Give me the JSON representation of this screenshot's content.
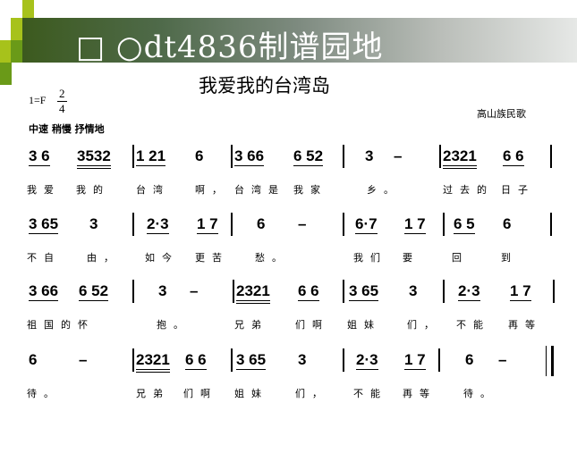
{
  "header": {
    "site_title": "□ ○dt4836制谱园地",
    "accent_colors": [
      "#a7c21b",
      "#6a9a18",
      "#3c5a1e"
    ]
  },
  "song": {
    "title": "我爱我的台湾岛",
    "key": "1=F",
    "time_top": "2",
    "time_bottom": "4",
    "origin": "高山族民歌",
    "tempo": "中速 稍慢 抒情地"
  },
  "rows": [
    {
      "notes": [
        "3 6",
        "3532",
        "1 21",
        "6",
        "3 66",
        "6 52",
        "3",
        "–",
        "2321",
        "6 6"
      ],
      "lyrics": [
        "我爱",
        "我的",
        "台湾",
        "啊，",
        "台湾是",
        "我家",
        "乡。",
        "过去的",
        "日子"
      ]
    },
    {
      "notes": [
        "3 65",
        "3",
        "2·3",
        "1 7",
        "6",
        "–",
        "6·7",
        "1 7",
        "6 5",
        "6"
      ],
      "lyrics": [
        "不自",
        "由，",
        "如今",
        "更苦",
        "愁。",
        "我们",
        "要",
        "回",
        "到"
      ]
    },
    {
      "notes": [
        "3 66",
        "6 52",
        "3",
        "–",
        "2321",
        "6 6",
        "3 65",
        "3",
        "2·3",
        "1 7"
      ],
      "lyrics": [
        "祖国的",
        "怀",
        "抱。",
        "兄弟",
        "们啊",
        "姐妹",
        "们，",
        "不能",
        "再等"
      ]
    },
    {
      "notes": [
        "6",
        "–",
        "2321",
        "6 6",
        "3 65",
        "3",
        "2·3",
        "1 7",
        "6",
        "–"
      ],
      "lyrics": [
        "待。",
        "兄弟",
        "们啊",
        "姐妹",
        "们，",
        "不能",
        "再等",
        "待。"
      ]
    }
  ]
}
